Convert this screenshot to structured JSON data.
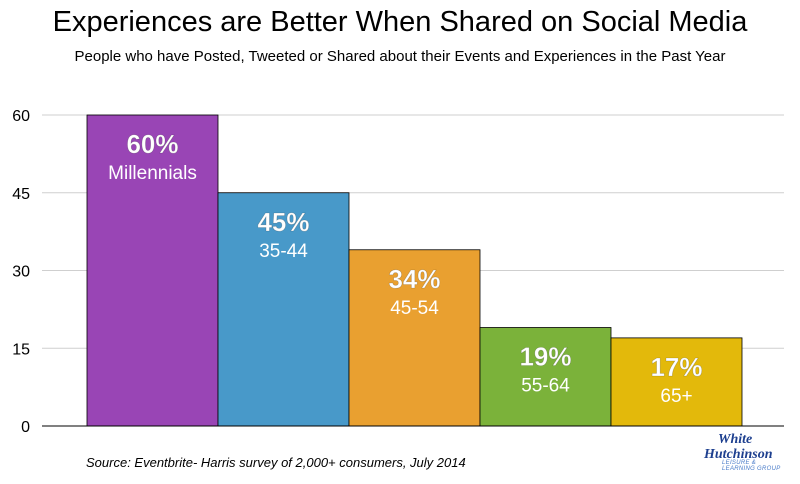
{
  "chart_data": {
    "type": "bar",
    "title": "Experiences are Better When Shared on Social Media",
    "subtitle": "People who have Posted, Tweeted or Shared about their Events and Experiences in the Past Year",
    "categories": [
      "Millennials",
      "35-44",
      "45-54",
      "55-64",
      "65+"
    ],
    "values": [
      60,
      45,
      34,
      19,
      17
    ],
    "value_labels": [
      "60%",
      "45%",
      "34%",
      "19%",
      "17%"
    ],
    "colors": [
      "#9945b5",
      "#4899c9",
      "#e9a030",
      "#7bb23a",
      "#e3b90b"
    ],
    "ylim": [
      0,
      60
    ],
    "yticks": [
      0,
      15,
      30,
      45,
      60
    ],
    "ytick_labels": [
      "0",
      "15",
      "30",
      "45",
      "60"
    ],
    "grid": true,
    "legend": "none",
    "xlabel": "",
    "ylabel": ""
  },
  "footer": {
    "source": "Source: Eventbrite- Harris survey of 2,000+ consumers, July 2014"
  },
  "logo": {
    "line1": "White",
    "line2": "Hutchinson",
    "line3": "LEISURE & LEARNING GROUP"
  }
}
